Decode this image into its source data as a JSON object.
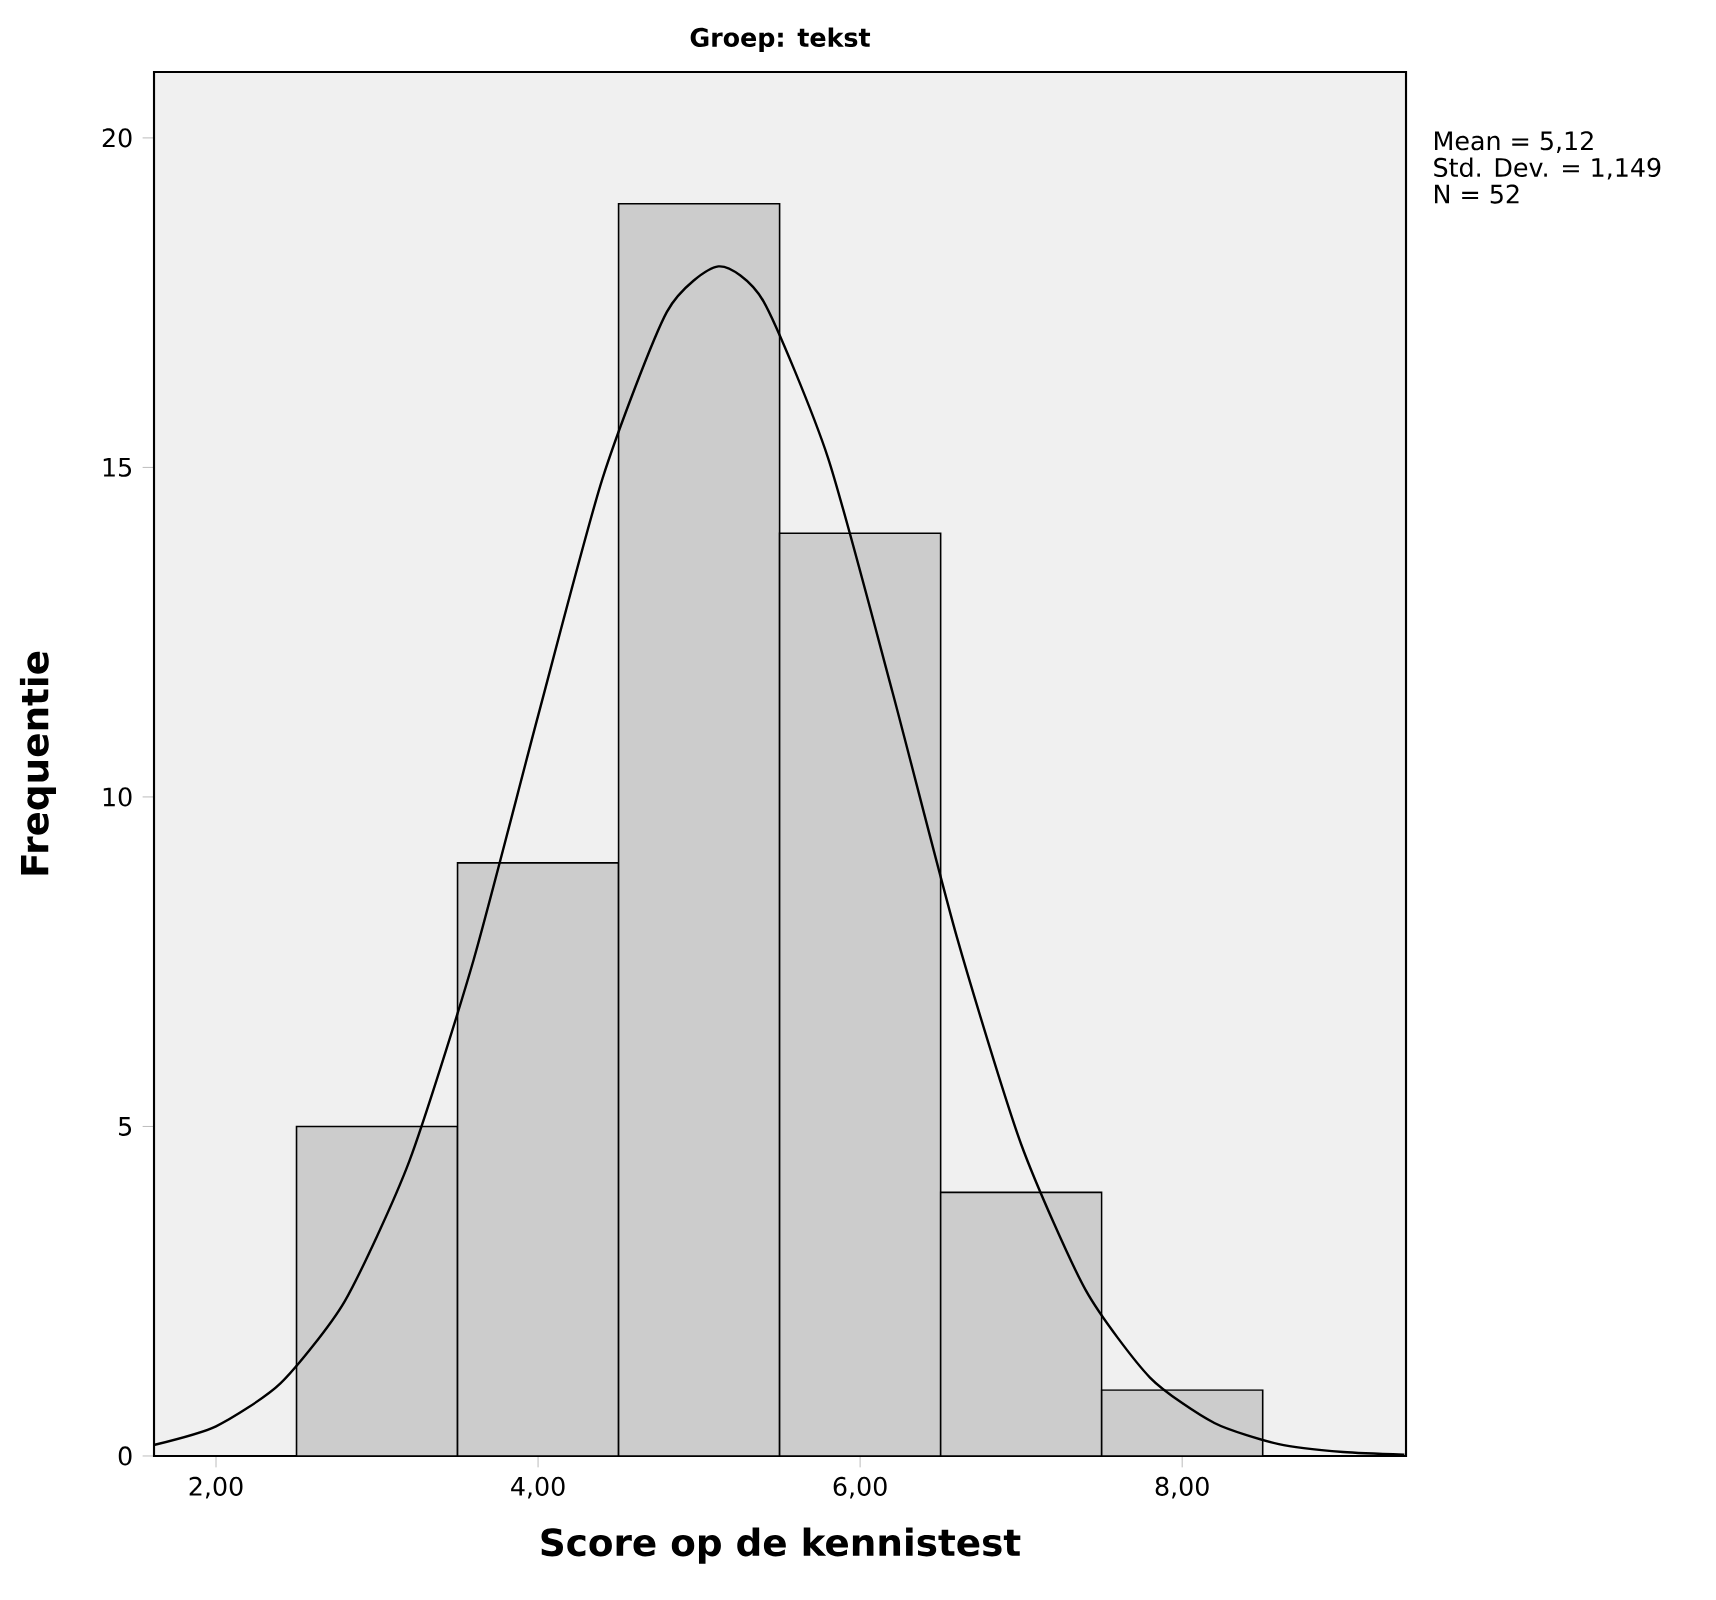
{
  "chart_data": {
    "type": "histogram",
    "title": "Groep: tekst",
    "xlabel": "Score op de kennistest",
    "ylabel": "Frequentie",
    "bins": [
      2.5,
      3.5,
      4.5,
      5.5,
      6.5,
      7.5,
      8.5
    ],
    "values": [
      5,
      9,
      19,
      14,
      4,
      1
    ],
    "color": "#cccccc",
    "series": [
      {
        "type": "line",
        "color": "#000000",
        "x": [
          1.62,
          2.0,
          2.4,
          2.8,
          3.2,
          3.6,
          4.0,
          4.4,
          4.8,
          5.12,
          5.4,
          5.8,
          6.2,
          6.6,
          7.0,
          7.4,
          7.8,
          8.2,
          8.6,
          9.0,
          9.38
        ],
        "values": [
          0.17,
          0.45,
          1.1,
          2.35,
          4.47,
          7.53,
          11.23,
          14.83,
          17.36,
          18.05,
          17.52,
          15.15,
          11.6,
          7.88,
          4.73,
          2.52,
          1.19,
          0.5,
          0.18,
          0.06,
          0.02
        ]
      }
    ],
    "xlim": [
      1.615,
      9.39
    ],
    "ylim": [
      0,
      21
    ],
    "xticks": [
      {
        "value": 2,
        "label": "2,00"
      },
      {
        "value": 4,
        "label": "4,00"
      },
      {
        "value": 6,
        "label": "6,00"
      },
      {
        "value": 8,
        "label": "8,00"
      }
    ],
    "yticks": [
      0,
      5,
      10,
      15,
      20
    ],
    "grid": false,
    "annotations": [
      "Mean = 5,12",
      "Std. Dev. = 1,149",
      "N = 52"
    ]
  }
}
